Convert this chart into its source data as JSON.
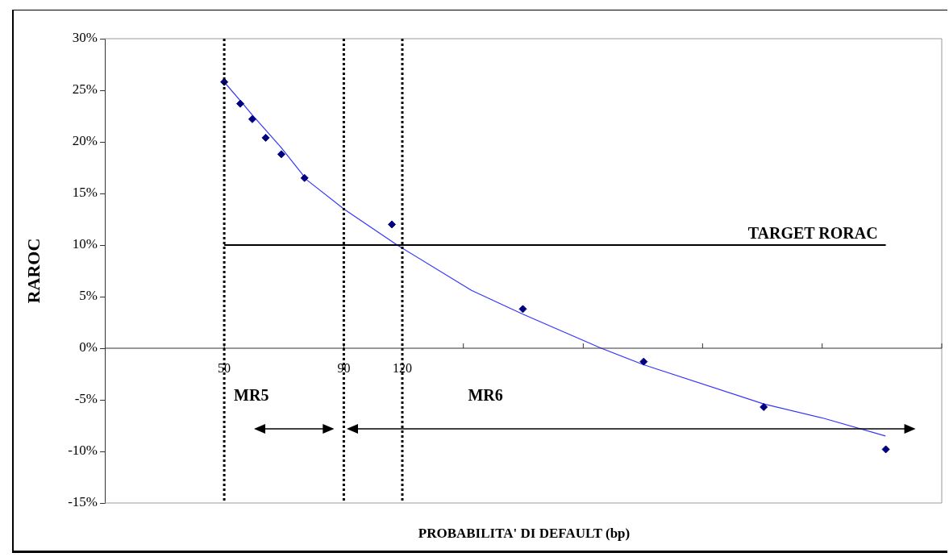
{
  "chart_data": {
    "type": "scatter",
    "xlabel": "PROBABILITA' DI DEFAULT (bp)",
    "ylabel": "RAROC",
    "log": "x",
    "xlim": [
      27.8,
      1701
    ],
    "xticks": [
      {
        "value": 50,
        "label": null
      },
      {
        "value": 90,
        "label": null
      },
      {
        "value": 162,
        "label": null
      },
      {
        "value": 292,
        "label": null
      },
      {
        "value": 525,
        "label": null
      },
      {
        "value": 945,
        "label": null
      }
    ],
    "ylim": [
      -15,
      30
    ],
    "yticks": [
      {
        "value": -15,
        "label": "-15%"
      },
      {
        "value": -10,
        "label": "-10%"
      },
      {
        "value": -5,
        "label": "-5%"
      },
      {
        "value": 0,
        "label": "0%"
      },
      {
        "value": 5,
        "label": "5%"
      },
      {
        "value": 10,
        "label": "10%"
      },
      {
        "value": 15,
        "label": "15%"
      },
      {
        "value": 20,
        "label": "20%"
      },
      {
        "value": 25,
        "label": "25%"
      },
      {
        "value": 30,
        "label": "30%"
      }
    ],
    "tick_labels": "y",
    "grid": false,
    "legend": false,
    "series": [
      {
        "color": "#000080",
        "marker": "diamond",
        "x": [
          50,
          54.1,
          57.4,
          61.3,
          66.2,
          74.2,
          114,
          217,
          393,
          709,
          1292
        ],
        "values": [
          25.8,
          23.7,
          22.2,
          20.4,
          18.8,
          16.5,
          12.0,
          3.8,
          -1.3,
          -5.7,
          -9.8
        ]
      },
      {
        "type": "line",
        "color": "#3333ff",
        "marker": "none",
        "line_style": "solid",
        "x": [
          50,
          54.1,
          57.4,
          66,
          75.1,
          90,
          117,
          168.6,
          217,
          319,
          393,
          709,
          953,
          1290
        ],
        "values": [
          25.8,
          24,
          22.6,
          19.5,
          16.3,
          13.5,
          10,
          5.6,
          3.3,
          0,
          -1.6,
          -5.4,
          -6.8,
          -8.5
        ]
      }
    ],
    "ref_lines": [
      {
        "axis": "x",
        "value": 50,
        "label": "50",
        "color": "#000000",
        "line_style": "dotted"
      },
      {
        "axis": "x",
        "value": 90,
        "label": "90",
        "color": "#000000",
        "line_style": "dotted"
      },
      {
        "axis": "x",
        "value": 120,
        "label": "120",
        "color": "#000000",
        "line_style": "dotted"
      },
      {
        "axis": "y",
        "value": 10,
        "label": "TARGET RORAC",
        "color": "#000000",
        "line_style": "solid"
      }
    ],
    "annotations": [
      "MR5",
      "MR6"
    ]
  }
}
